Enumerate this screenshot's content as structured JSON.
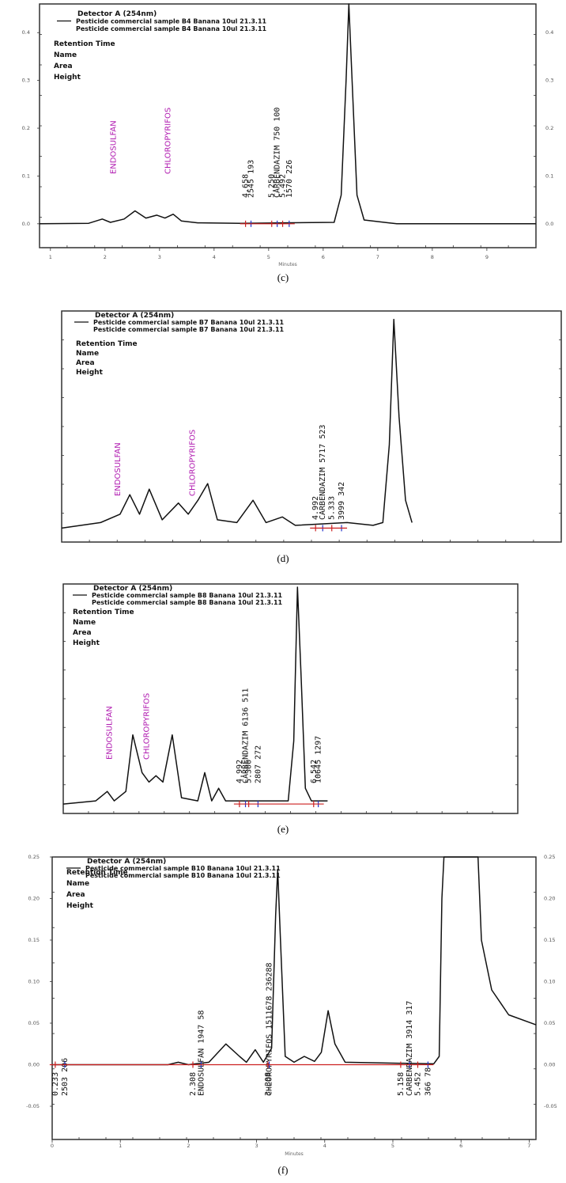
{
  "chart_data": [
    {
      "type": "line",
      "panel": "(c)",
      "legend": {
        "detector": "Detector A (254nm)",
        "series": [
          "Pesticide commercial sample B4 Banana 10ul 21.3.11",
          "Pesticide commercial sample B4 Banana 10ul 21.3.11"
        ],
        "fields": [
          "Retention Time",
          "Name",
          "Area",
          "Height"
        ]
      },
      "y_ticks_left": [
        "0.4",
        "0.3",
        "0.2",
        "0.1",
        "0.0"
      ],
      "y_ticks_right": [
        "0.4",
        "0.3",
        "0.2",
        "0.1",
        "0.0"
      ],
      "x_ticks": [
        "1",
        "2",
        "3",
        "4",
        "5",
        "6",
        "7",
        "8",
        "9"
      ],
      "xlabel": "Minutes",
      "xlim": [
        0.8,
        9.9
      ],
      "ylim": [
        -0.05,
        0.46
      ],
      "trace": [
        [
          0.8,
          0
        ],
        [
          1.7,
          0.001
        ],
        [
          1.95,
          0.01
        ],
        [
          2.1,
          0.003
        ],
        [
          2.35,
          0.01
        ],
        [
          2.55,
          0.027
        ],
        [
          2.75,
          0.012
        ],
        [
          2.95,
          0.018
        ],
        [
          3.1,
          0.012
        ],
        [
          3.25,
          0.02
        ],
        [
          3.4,
          0.006
        ],
        [
          3.7,
          0.002
        ],
        [
          4.5,
          0.001
        ],
        [
          5.3,
          0.002
        ],
        [
          6.2,
          0.003
        ],
        [
          6.33,
          0.06
        ],
        [
          6.42,
          0.3
        ],
        [
          6.47,
          0.47
        ],
        [
          6.53,
          0.3
        ],
        [
          6.62,
          0.06
        ],
        [
          6.75,
          0.008
        ],
        [
          7.2,
          0.002
        ],
        [
          7.35,
          0
        ],
        [
          9.9,
          0
        ]
      ],
      "peak_labels": [
        {
          "text": "ENDOSULFAN",
          "x": 2.2,
          "color": "magenta"
        },
        {
          "text": "CHLOROPYRIFOS",
          "x": 3.2,
          "color": "magenta"
        },
        {
          "text": "4.658",
          "x": 4.62
        },
        {
          "text": "2545 193",
          "x": 4.72
        },
        {
          "text": "5.250",
          "x": 5.1
        },
        {
          "text": "CARBENDAZIM 750 100",
          "x": 5.2
        },
        {
          "text": "1570 226",
          "x": 5.42
        },
        {
          "text": "5.492",
          "x": 5.3
        }
      ]
    },
    {
      "type": "line",
      "panel": "(d)",
      "legend": {
        "detector": "Detector A (254nm)",
        "series": [
          "Pesticide commercial sample B7 Banana 10ul 21.3.11",
          "Pesticide commercial sample B7 Banana 10ul 21.3.11"
        ],
        "fields": [
          "Retention Time",
          "Name",
          "Area",
          "Height"
        ]
      },
      "xlim": [
        1.6,
        9.3
      ],
      "ylim": [
        -0.005,
        0.078
      ],
      "trace": [
        [
          1.6,
          0
        ],
        [
          2.2,
          0.002
        ],
        [
          2.5,
          0.005
        ],
        [
          2.65,
          0.012
        ],
        [
          2.8,
          0.005
        ],
        [
          2.95,
          0.014
        ],
        [
          3.15,
          0.003
        ],
        [
          3.4,
          0.009
        ],
        [
          3.55,
          0.005
        ],
        [
          3.7,
          0.01
        ],
        [
          3.85,
          0.016
        ],
        [
          4.0,
          0.003
        ],
        [
          4.3,
          0.002
        ],
        [
          4.55,
          0.01
        ],
        [
          4.75,
          0.002
        ],
        [
          5.0,
          0.004
        ],
        [
          5.2,
          0.001
        ],
        [
          6.0,
          0.002
        ],
        [
          6.4,
          0.001
        ],
        [
          6.55,
          0.002
        ],
        [
          6.65,
          0.03
        ],
        [
          6.72,
          0.075
        ],
        [
          6.8,
          0.04
        ],
        [
          6.9,
          0.01
        ],
        [
          7.0,
          0.002
        ]
      ],
      "peak_labels": [
        {
          "text": "ENDOSULFAN",
          "x": 2.5,
          "color": "magenta"
        },
        {
          "text": "CHLOROPYRIFOS",
          "x": 3.65,
          "color": "magenta"
        },
        {
          "text": "4.992",
          "x": 5.55
        },
        {
          "text": "CARBENDAZIM 5717 523",
          "x": 5.66
        },
        {
          "text": "5.333",
          "x": 5.8
        },
        {
          "text": "3999 342",
          "x": 5.95
        }
      ]
    },
    {
      "type": "line",
      "panel": "(e)",
      "legend": {
        "detector": "Detector A (254nm)",
        "series": [
          "Pesticide commercial sample B8 Banana 10ul 21.3.11",
          "Pesticide commercial sample B8 Banana 10ul 21.3.11"
        ],
        "fields": [
          "Retention Time",
          "Name",
          "Area",
          "Height"
        ]
      },
      "xlim": [
        1.0,
        10.8
      ],
      "ylim": [
        -0.003,
        0.07
      ],
      "trace": [
        [
          1.0,
          0
        ],
        [
          1.7,
          0.001
        ],
        [
          1.95,
          0.004
        ],
        [
          2.1,
          0.001
        ],
        [
          2.35,
          0.004
        ],
        [
          2.5,
          0.022
        ],
        [
          2.7,
          0.01
        ],
        [
          2.85,
          0.007
        ],
        [
          3.0,
          0.009
        ],
        [
          3.15,
          0.007
        ],
        [
          3.35,
          0.022
        ],
        [
          3.55,
          0.002
        ],
        [
          3.9,
          0.001
        ],
        [
          4.05,
          0.01
        ],
        [
          4.2,
          0.001
        ],
        [
          4.35,
          0.005
        ],
        [
          4.5,
          0.001
        ],
        [
          5.6,
          0.001
        ],
        [
          5.85,
          0.001
        ],
        [
          5.97,
          0.02
        ],
        [
          6.05,
          0.069
        ],
        [
          6.13,
          0.04
        ],
        [
          6.22,
          0.005
        ],
        [
          6.35,
          0.001
        ],
        [
          6.7,
          0.001
        ]
      ],
      "peak_labels": [
        {
          "text": "ENDOSULFAN",
          "x": 2.05,
          "color": "magenta"
        },
        {
          "text": "CHLOROPYRIFOS",
          "x": 2.85,
          "color": "magenta"
        },
        {
          "text": "4.992",
          "x": 4.85
        },
        {
          "text": "CARBENDAZIM 6136 511",
          "x": 4.98
        },
        {
          "text": "5.300",
          "x": 5.05
        },
        {
          "text": "2807 272",
          "x": 5.25
        },
        {
          "text": "10645 1297",
          "x": 6.55
        },
        {
          "text": "6.542",
          "x": 6.45
        }
      ]
    },
    {
      "type": "line",
      "panel": "(f)",
      "legend": {
        "detector": "Detector A (254nm)",
        "series": [
          "Pesticide commercial sample B10 Banana 10ul 21.3.11",
          "Pesticide commercial sample B10 Banana 10ul 21.3.11"
        ],
        "fields": [
          "Retention Time",
          "Name",
          "Area",
          "Height"
        ]
      },
      "y_ticks_left": [
        "0.25",
        "0.20",
        "0.15",
        "0.10",
        "0.05",
        "0.00",
        "-0.05"
      ],
      "y_ticks_right": [
        "0.25",
        "0.20",
        "0.15",
        "0.10",
        "0.05",
        "0.00",
        "-0.05"
      ],
      "x_ticks": [
        "0",
        "1",
        "2",
        "3",
        "4",
        "5",
        "6",
        "7"
      ],
      "xlabel": "Minutes",
      "xlim": [
        0,
        7.1
      ],
      "ylim": [
        -0.09,
        0.25
      ],
      "trace": [
        [
          0,
          0
        ],
        [
          1.7,
          0
        ],
        [
          1.85,
          0.003
        ],
        [
          2.0,
          0
        ],
        [
          2.3,
          0.003
        ],
        [
          2.55,
          0.025
        ],
        [
          2.75,
          0.01
        ],
        [
          2.85,
          0.003
        ],
        [
          2.98,
          0.018
        ],
        [
          3.1,
          0.003
        ],
        [
          3.22,
          0.02
        ],
        [
          3.28,
          0.18
        ],
        [
          3.31,
          0.235
        ],
        [
          3.35,
          0.15
        ],
        [
          3.42,
          0.01
        ],
        [
          3.55,
          0.003
        ],
        [
          3.7,
          0.01
        ],
        [
          3.85,
          0.004
        ],
        [
          3.95,
          0.015
        ],
        [
          4.05,
          0.065
        ],
        [
          4.15,
          0.025
        ],
        [
          4.3,
          0.003
        ],
        [
          5.6,
          0.001
        ],
        [
          5.68,
          0.01
        ],
        [
          5.72,
          0.2
        ],
        [
          5.75,
          0.26
        ],
        [
          6.25,
          0.26
        ],
        [
          6.3,
          0.15
        ],
        [
          6.45,
          0.09
        ],
        [
          6.7,
          0.06
        ],
        [
          7.1,
          0.048
        ]
      ],
      "peak_labels": [
        {
          "text": "0.233",
          "x": 0.08
        },
        {
          "text": "2503 206",
          "x": 0.22
        },
        {
          "text": "2.308",
          "x": 2.1
        },
        {
          "text": "ENDOSULFAN 1947 58",
          "x": 2.22
        },
        {
          "text": "CHLOROPYRIFOS 1511678 236288",
          "x": 3.22
        },
        {
          "text": "3.308",
          "x": 3.2
        },
        {
          "text": "5.158",
          "x": 5.15
        },
        {
          "text": "CARBENDAZIM 3914 317",
          "x": 5.28
        },
        {
          "text": "5.452",
          "x": 5.4
        },
        {
          "text": "366 78",
          "x": 5.55
        }
      ]
    }
  ],
  "captions": [
    "(c)",
    "(d)",
    "(e)",
    "(f)"
  ]
}
